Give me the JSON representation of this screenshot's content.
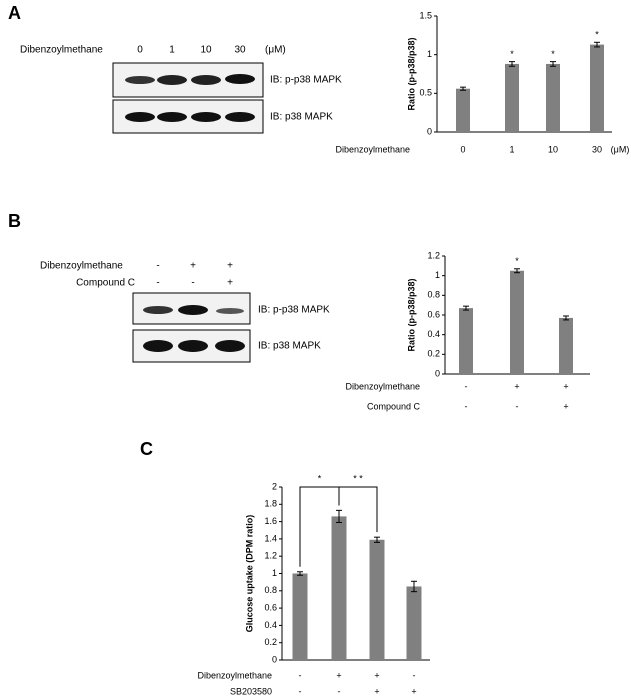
{
  "panels": [
    "A",
    "B",
    "C"
  ],
  "blots": [
    {
      "header": "Dibenzoylmethane",
      "lanes": [
        "0",
        "1",
        "10",
        "30"
      ],
      "unit": "(μM)",
      "labels": [
        "IB: p-p38 MAPK",
        "IB: p38 MAPK"
      ]
    },
    {
      "rows": [
        {
          "name": "Dibenzoylmethane",
          "labels": [
            "-",
            "+",
            "+"
          ]
        },
        {
          "name": "Compound C",
          "labels": [
            "-",
            "-",
            "+"
          ]
        }
      ],
      "labels": [
        "IB: p-p38 MAPK",
        "IB: p38 MAPK"
      ]
    }
  ],
  "chart_data": [
    {
      "type": "bar",
      "y_label": "Ratio (p-p38/p38)",
      "x_label": "Dibenzoylmethane",
      "unit": "(μM)",
      "categories": [
        "0",
        "1",
        "10",
        "30"
      ],
      "values": [
        0.56,
        0.88,
        0.88,
        1.13
      ],
      "errors": [
        0.02,
        0.03,
        0.03,
        0.03
      ],
      "stars": [
        null,
        "*",
        "*",
        "*"
      ],
      "color": "#808080",
      "ylim": [
        0,
        1.5
      ],
      "yticks": [
        0,
        0.5,
        1,
        1.5
      ]
    },
    {
      "type": "bar",
      "y_label": "Ratio (p-p38/p38)",
      "rows": [
        {
          "name": "Dibenzoylmethane",
          "labels": [
            "-",
            "+",
            "+"
          ]
        },
        {
          "name": "Compound C",
          "labels": [
            "-",
            "-",
            "+"
          ]
        }
      ],
      "values": [
        0.67,
        1.05,
        0.57
      ],
      "errors": [
        0.02,
        0.02,
        0.02
      ],
      "stars": [
        null,
        "*",
        null
      ],
      "color": "#808080",
      "ylim": [
        0,
        1.2
      ],
      "yticks": [
        0,
        0.2,
        0.4,
        0.6,
        0.8,
        1,
        1.2
      ]
    },
    {
      "type": "bar",
      "y_label": "Glucose uptake (DPM ratio)",
      "rows": [
        {
          "name": "Dibenzoylmethane",
          "labels": [
            "-",
            "+",
            "+",
            "-"
          ]
        },
        {
          "name": "SB203580",
          "labels": [
            "-",
            "-",
            "+",
            "+"
          ]
        }
      ],
      "values": [
        1.0,
        1.66,
        1.39,
        0.85
      ],
      "errors": [
        0.02,
        0.07,
        0.03,
        0.06
      ],
      "comparisons": [
        "*",
        "* *"
      ],
      "color": "#808080",
      "ylim": [
        0,
        2
      ],
      "yticks": [
        0,
        0.2,
        0.4,
        0.6,
        0.8,
        1,
        1.2,
        1.4,
        1.6,
        1.8,
        2
      ]
    }
  ]
}
